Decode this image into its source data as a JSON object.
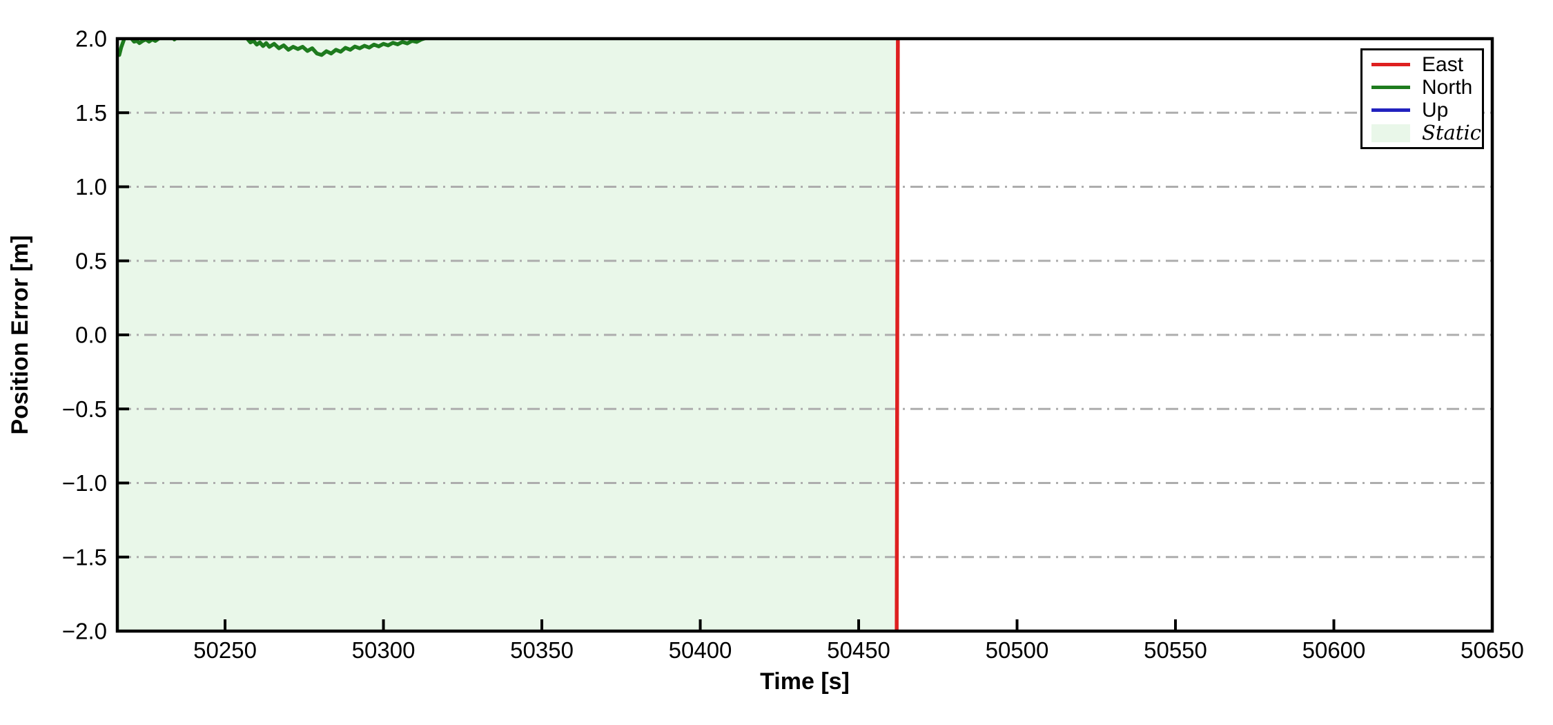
{
  "figure": {
    "background": "#ffffff",
    "frame_color": "#000000"
  },
  "chart_data": {
    "type": "line",
    "title": "",
    "xlabel": "Time [s]",
    "ylabel": "Position Error [m]",
    "xlim": [
      50216,
      50650
    ],
    "ylim": [
      -2.0,
      2.0
    ],
    "x_ticks": [
      50250,
      50300,
      50350,
      50400,
      50450,
      50500,
      50550,
      50600,
      50650
    ],
    "x_tick_labels": [
      "50250",
      "50300",
      "50350",
      "50400",
      "50450",
      "50500",
      "50550",
      "50600",
      "50650"
    ],
    "y_ticks": [
      2.0,
      1.5,
      1.0,
      0.5,
      0.0,
      -0.5,
      -1.0,
      -1.5,
      -2.0
    ],
    "y_tick_labels": [
      "2.0",
      "1.5",
      "1.0",
      "0.5",
      "0.0",
      "−0.5",
      "−1.0",
      "−1.5",
      "−2.0"
    ],
    "grid": {
      "lines_at": [
        1.5,
        1.0,
        0.5,
        0.0,
        -0.5,
        -1.0,
        -1.5
      ],
      "style": "dash-dot",
      "color": "#ADADAD"
    },
    "static_region": {
      "label": "Static",
      "t_start": 50216,
      "t_end": 50462,
      "fill": "#E9F7E9"
    },
    "series": [
      {
        "name": "East",
        "color": "#DE2020",
        "points": [
          [
            50462.0,
            -2.1
          ],
          [
            50462.4,
            2.1
          ]
        ]
      },
      {
        "name": "North",
        "color": "#1E7B1E",
        "points": [
          [
            50216.6,
            1.89
          ],
          [
            50217.2,
            1.94
          ],
          [
            50218.2,
            2.0
          ],
          [
            50219.0,
            2.02
          ],
          [
            50220.5,
            2.0
          ],
          [
            50221.3,
            1.98
          ],
          [
            50222.2,
            1.985
          ],
          [
            50223.0,
            1.97
          ],
          [
            50224.0,
            1.985
          ],
          [
            50225.0,
            1.995
          ],
          [
            50226.0,
            1.98
          ],
          [
            50227.0,
            1.995
          ],
          [
            50228.0,
            1.985
          ],
          [
            50229.0,
            2.0
          ],
          [
            50230.0,
            2.02
          ],
          [
            50233.0,
            2.02
          ],
          [
            50234.0,
            1.995
          ],
          [
            50235.0,
            2.01
          ],
          [
            50236.0,
            2.02
          ],
          [
            50256.0,
            2.02
          ],
          [
            50257.0,
            2.0
          ],
          [
            50258.0,
            1.975
          ],
          [
            50259.0,
            1.985
          ],
          [
            50260.0,
            1.96
          ],
          [
            50261.0,
            1.975
          ],
          [
            50262.0,
            1.95
          ],
          [
            50263.0,
            1.97
          ],
          [
            50264.0,
            1.945
          ],
          [
            50265.5,
            1.965
          ],
          [
            50267.0,
            1.935
          ],
          [
            50268.5,
            1.955
          ],
          [
            50270.0,
            1.925
          ],
          [
            50271.5,
            1.945
          ],
          [
            50273.0,
            1.93
          ],
          [
            50274.5,
            1.945
          ],
          [
            50276.0,
            1.917
          ],
          [
            50277.5,
            1.935
          ],
          [
            50279.0,
            1.9
          ],
          [
            50280.5,
            1.89
          ],
          [
            50282.0,
            1.915
          ],
          [
            50283.5,
            1.9
          ],
          [
            50285.0,
            1.925
          ],
          [
            50286.5,
            1.912
          ],
          [
            50288.0,
            1.938
          ],
          [
            50289.5,
            1.925
          ],
          [
            50291.0,
            1.947
          ],
          [
            50292.5,
            1.935
          ],
          [
            50294.0,
            1.952
          ],
          [
            50295.5,
            1.94
          ],
          [
            50297.0,
            1.96
          ],
          [
            50298.5,
            1.948
          ],
          [
            50300.0,
            1.965
          ],
          [
            50301.5,
            1.955
          ],
          [
            50303.0,
            1.972
          ],
          [
            50304.5,
            1.962
          ],
          [
            50306.0,
            1.978
          ],
          [
            50307.5,
            1.968
          ],
          [
            50309.0,
            1.985
          ],
          [
            50310.5,
            1.978
          ],
          [
            50312.0,
            1.995
          ],
          [
            50313.5,
            2.005
          ],
          [
            50315.0,
            2.02
          ]
        ]
      },
      {
        "name": "Up",
        "color": "#2222BE",
        "points": []
      }
    ],
    "legend": {
      "position": "top-right",
      "entries": [
        {
          "label": "East",
          "type": "line",
          "color": "#DE2020"
        },
        {
          "label": "North",
          "type": "line",
          "color": "#1E7B1E"
        },
        {
          "label": "Up",
          "type": "line",
          "color": "#2222BE"
        },
        {
          "label": "Static",
          "type": "patch",
          "color": "#E9F7E9"
        }
      ]
    }
  }
}
